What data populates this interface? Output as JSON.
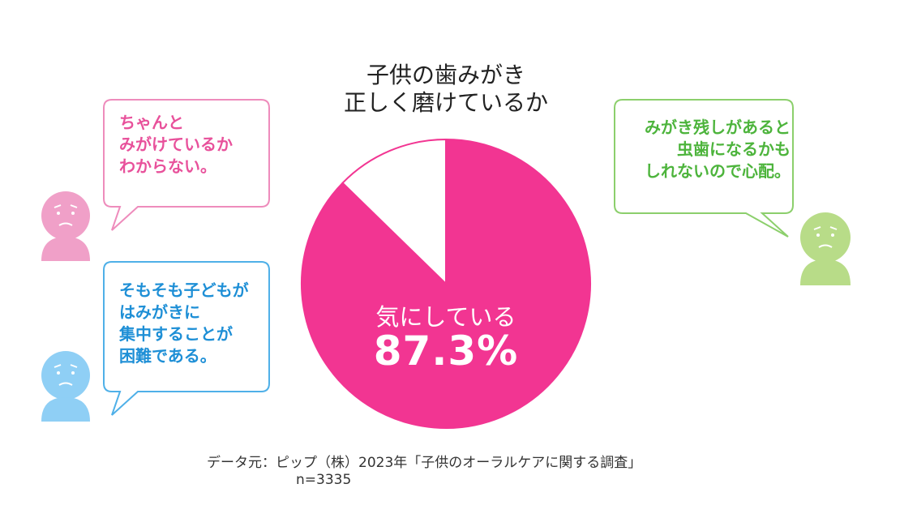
{
  "title": {
    "line1": "子供の歯みがき",
    "line2": "正しく磨けているか"
  },
  "chart_data": {
    "type": "pie",
    "slices": [
      {
        "label": "気にしている",
        "value": 87.3,
        "color": "#f23592"
      },
      {
        "label": "",
        "value": 12.7,
        "color": "#ffffff"
      }
    ],
    "center_label": "気にしている",
    "center_value": "87.3%"
  },
  "bubbles": {
    "pink": {
      "lines": [
        "ちゃんと",
        "みがけているか",
        "わからない。"
      ],
      "color": "#e8519b"
    },
    "blue": {
      "lines": [
        "そもそも子どもが",
        "はみがきに",
        "集中することが",
        "困難である。"
      ],
      "color": "#1e8fd6"
    },
    "green": {
      "lines": [
        "みがき残しがあると",
        "虫歯になるかも",
        "しれないので心配。"
      ],
      "color": "#4db43c"
    }
  },
  "faces": {
    "pink": "#f0a0c8",
    "blue": "#8fcff5",
    "green": "#b8dc88"
  },
  "source": {
    "line1": "データ元：ピップ（株）2023年「子供のオーラルケアに関する調査」",
    "line2": "n=3335"
  }
}
